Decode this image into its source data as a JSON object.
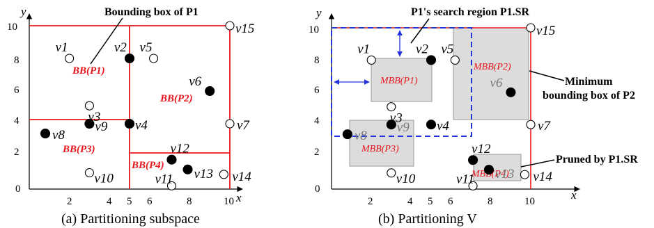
{
  "panel_a": {
    "caption": "(a) Partitioning subspace",
    "axis_y": "y",
    "axis_x": "x",
    "x_ticks": [
      "2",
      "4",
      "5",
      "6",
      "8",
      "10"
    ],
    "y_ticks": [
      "10",
      "8",
      "6",
      "4",
      "2"
    ],
    "origin": "0",
    "annotation": "Bounding box of P1",
    "boxes": [
      {
        "label": "BB(P1)"
      },
      {
        "label": "BB(P2)"
      },
      {
        "label": "BB(P3)"
      },
      {
        "label": "BB(P4)"
      }
    ],
    "points": [
      {
        "label": "v1",
        "x": 2,
        "y": 8,
        "filled": false
      },
      {
        "label": "v2",
        "x": 5,
        "y": 8,
        "filled": true
      },
      {
        "label": "v3",
        "x": 3,
        "y": 5.1,
        "filled": false
      },
      {
        "label": "v4",
        "x": 5,
        "y": 4,
        "filled": true
      },
      {
        "label": "v5",
        "x": 6.2,
        "y": 8,
        "filled": false
      },
      {
        "label": "v6",
        "x": 9,
        "y": 6,
        "filled": true
      },
      {
        "label": "v7",
        "x": 10,
        "y": 4,
        "filled": false
      },
      {
        "label": "v8",
        "x": 0.8,
        "y": 3.4,
        "filled": true
      },
      {
        "label": "v9",
        "x": 3,
        "y": 4,
        "filled": true
      },
      {
        "label": "v10",
        "x": 3,
        "y": 1,
        "filled": false
      },
      {
        "label": "v11",
        "x": 7.1,
        "y": 0.2,
        "filled": false
      },
      {
        "label": "v12",
        "x": 7.1,
        "y": 1.8,
        "filled": true
      },
      {
        "label": "v13",
        "x": 7.9,
        "y": 1.2,
        "filled": true
      },
      {
        "label": "v14",
        "x": 9.7,
        "y": 0.9,
        "filled": false
      },
      {
        "label": "v15",
        "x": 10,
        "y": 10,
        "filled": false
      }
    ]
  },
  "panel_b": {
    "caption": "(b) Partitioning V",
    "axis_y": "y",
    "axis_x": "x",
    "x_ticks": [
      "2",
      "4",
      "5",
      "6",
      "8",
      "10"
    ],
    "y_ticks": [
      "10",
      "8",
      "6",
      "4",
      "2"
    ],
    "origin": "0",
    "annotation_search": "P1's search region P1.SR",
    "annotation_mbb": "Minimum bounding box of P2",
    "annotation_mbb_line1": "Minimum",
    "annotation_mbb_line2": "bounding box of P2",
    "annotation_pruned": "Pruned by P1.SR",
    "boxes": [
      {
        "label": "MBB(P1)"
      },
      {
        "label": "MBB(P2)"
      },
      {
        "label": "MBB(P3)"
      },
      {
        "label": "MBB(P4)"
      }
    ],
    "points": [
      {
        "label": "v1",
        "x": 2,
        "y": 8,
        "filled": false
      },
      {
        "label": "v2",
        "x": 5,
        "y": 8,
        "filled": true
      },
      {
        "label": "v3",
        "x": 3,
        "y": 5.1,
        "filled": false
      },
      {
        "label": "v4",
        "x": 5,
        "y": 4,
        "filled": true
      },
      {
        "label": "v5",
        "x": 6.2,
        "y": 8,
        "filled": false
      },
      {
        "label": "v6",
        "x": 9,
        "y": 6,
        "filled": true
      },
      {
        "label": "v7",
        "x": 10,
        "y": 4,
        "filled": false
      },
      {
        "label": "v8",
        "x": 0.8,
        "y": 3.4,
        "filled": true
      },
      {
        "label": "v9",
        "x": 3,
        "y": 4,
        "filled": true
      },
      {
        "label": "v10",
        "x": 3,
        "y": 1,
        "filled": false
      },
      {
        "label": "v11",
        "x": 7.1,
        "y": 0.2,
        "filled": false
      },
      {
        "label": "v12",
        "x": 7.1,
        "y": 1.8,
        "filled": true
      },
      {
        "label": "v13",
        "x": 7.9,
        "y": 1.2,
        "filled": true
      },
      {
        "label": "v14",
        "x": 9.7,
        "y": 0.9,
        "filled": false
      },
      {
        "label": "v15",
        "x": 10,
        "y": 10,
        "filled": false
      }
    ]
  },
  "colors": {
    "partition_line": "#e8161c",
    "search_region": "#2233dd",
    "mbb_fill": "#dcdcdc",
    "point": "#000000"
  }
}
